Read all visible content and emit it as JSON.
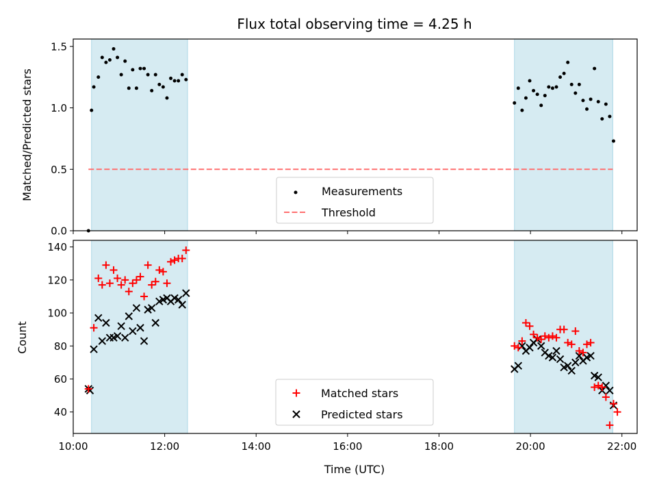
{
  "title": "Flux total observing time = 4.25 h",
  "colors": {
    "band": "#add8e6",
    "threshold": "#ff6e6e",
    "measure": "#000000",
    "matched": "#ff0000",
    "predicted": "#000000"
  },
  "chart_data": [
    {
      "type": "scatter",
      "ylabel": "Matched/Predicted stars",
      "xlim": [
        "10:00",
        "22:20"
      ],
      "ylim": [
        0,
        1.56
      ],
      "yticks": [
        0.0,
        0.5,
        1.0,
        1.5
      ],
      "ytick_labels": [
        "0.0",
        "0.5",
        "1.0",
        "1.5"
      ],
      "shaded_intervals": [
        [
          "10:24",
          "12:30"
        ],
        [
          "19:39",
          "21:48"
        ]
      ],
      "threshold": {
        "value": 0.5,
        "x_range": [
          "10:20",
          "21:48"
        ]
      },
      "legend": {
        "location": "lower center",
        "entries": [
          "Measurements",
          "Threshold"
        ]
      },
      "series": [
        {
          "name": "Measurements",
          "x": [
            "10:20",
            "10:24",
            "10:27",
            "10:33",
            "10:38",
            "10:43",
            "10:48",
            "10:53",
            "10:58",
            "11:03",
            "11:08",
            "11:13",
            "11:18",
            "11:23",
            "11:28",
            "11:33",
            "11:38",
            "11:43",
            "11:48",
            "11:53",
            "11:58",
            "12:03",
            "12:08",
            "12:13",
            "12:18",
            "12:23",
            "12:28",
            "19:39",
            "19:44",
            "19:49",
            "19:54",
            "19:59",
            "20:04",
            "20:09",
            "20:14",
            "20:19",
            "20:24",
            "20:29",
            "20:34",
            "20:39",
            "20:44",
            "20:49",
            "20:54",
            "20:59",
            "21:04",
            "21:09",
            "21:14",
            "21:19",
            "21:24",
            "21:29",
            "21:34",
            "21:39",
            "21:44",
            "21:49"
          ],
          "y": [
            0.0,
            0.98,
            1.17,
            1.25,
            1.41,
            1.37,
            1.39,
            1.48,
            1.41,
            1.27,
            1.38,
            1.16,
            1.31,
            1.16,
            1.32,
            1.32,
            1.27,
            1.14,
            1.27,
            1.19,
            1.17,
            1.08,
            1.24,
            1.22,
            1.22,
            1.27,
            1.23,
            1.04,
            1.16,
            0.98,
            1.08,
            1.22,
            1.14,
            1.11,
            1.02,
            1.1,
            1.17,
            1.16,
            1.17,
            1.25,
            1.28,
            1.37,
            1.19,
            1.12,
            1.19,
            1.06,
            0.99,
            1.07,
            1.32,
            1.05,
            0.91,
            1.03,
            0.93,
            0.73
          ]
        }
      ]
    },
    {
      "type": "scatter",
      "xlabel": "Time (UTC)",
      "ylabel": "Count",
      "xlim": [
        "10:00",
        "22:20"
      ],
      "ylim": [
        27,
        144
      ],
      "xticks": [
        "10:00",
        "12:00",
        "14:00",
        "16:00",
        "18:00",
        "20:00",
        "22:00"
      ],
      "yticks": [
        40,
        60,
        80,
        100,
        120,
        140
      ],
      "ytick_labels": [
        "40",
        "60",
        "80",
        "100",
        "120",
        "140"
      ],
      "shaded_intervals": [
        [
          "10:24",
          "12:30"
        ],
        [
          "19:39",
          "21:48"
        ]
      ],
      "legend": {
        "location": "lower center",
        "entries": [
          "Matched stars",
          "Predicted stars"
        ]
      },
      "series": [
        {
          "name": "Matched stars",
          "x": [
            "10:20",
            "10:27",
            "10:33",
            "10:38",
            "10:43",
            "10:48",
            "10:53",
            "10:58",
            "11:03",
            "11:08",
            "11:13",
            "11:18",
            "11:23",
            "11:28",
            "11:33",
            "11:38",
            "11:43",
            "11:48",
            "11:53",
            "11:58",
            "12:03",
            "12:08",
            "12:13",
            "12:18",
            "12:23",
            "12:28",
            "19:39",
            "19:44",
            "19:49",
            "19:54",
            "19:59",
            "20:04",
            "20:09",
            "20:14",
            "20:19",
            "20:24",
            "20:29",
            "20:34",
            "20:39",
            "20:44",
            "20:49",
            "20:54",
            "20:59",
            "21:04",
            "21:09",
            "21:14",
            "21:19",
            "21:24",
            "21:29",
            "21:34",
            "21:39",
            "21:44",
            "21:49",
            "21:54"
          ],
          "y": [
            54,
            91,
            121,
            117,
            129,
            118,
            126,
            121,
            117,
            120,
            113,
            118,
            120,
            122,
            110,
            129,
            117,
            119,
            126,
            125,
            118,
            131,
            132,
            133,
            133,
            138,
            80,
            79,
            83,
            94,
            92,
            87,
            85,
            84,
            86,
            85,
            86,
            85,
            90,
            90,
            82,
            81,
            89,
            77,
            76,
            81,
            82,
            55,
            56,
            55,
            49,
            32,
            45,
            40
          ]
        },
        {
          "name": "Predicted stars",
          "x": [
            "10:20",
            "10:22",
            "10:27",
            "10:33",
            "10:38",
            "10:43",
            "10:48",
            "10:53",
            "10:58",
            "11:03",
            "11:08",
            "11:13",
            "11:18",
            "11:23",
            "11:28",
            "11:33",
            "11:38",
            "11:43",
            "11:48",
            "11:53",
            "11:58",
            "12:03",
            "12:08",
            "12:13",
            "12:18",
            "12:23",
            "12:28",
            "19:39",
            "19:44",
            "19:49",
            "19:54",
            "19:59",
            "20:04",
            "20:09",
            "20:14",
            "20:19",
            "20:24",
            "20:29",
            "20:34",
            "20:39",
            "20:44",
            "20:49",
            "20:54",
            "20:59",
            "21:04",
            "21:09",
            "21:14",
            "21:19",
            "21:24",
            "21:29",
            "21:34",
            "21:39",
            "21:44",
            "21:49"
          ],
          "y": [
            54,
            53,
            78,
            97,
            83,
            94,
            85,
            85,
            86,
            92,
            85,
            98,
            89,
            103,
            91,
            83,
            102,
            103,
            94,
            107,
            108,
            109,
            107,
            109,
            108,
            105,
            112,
            66,
            68,
            80,
            77,
            79,
            82,
            84,
            80,
            76,
            74,
            73,
            77,
            72,
            67,
            68,
            65,
            70,
            74,
            71,
            73,
            74,
            62,
            61,
            53,
            56,
            53,
            44
          ]
        }
      ]
    }
  ]
}
